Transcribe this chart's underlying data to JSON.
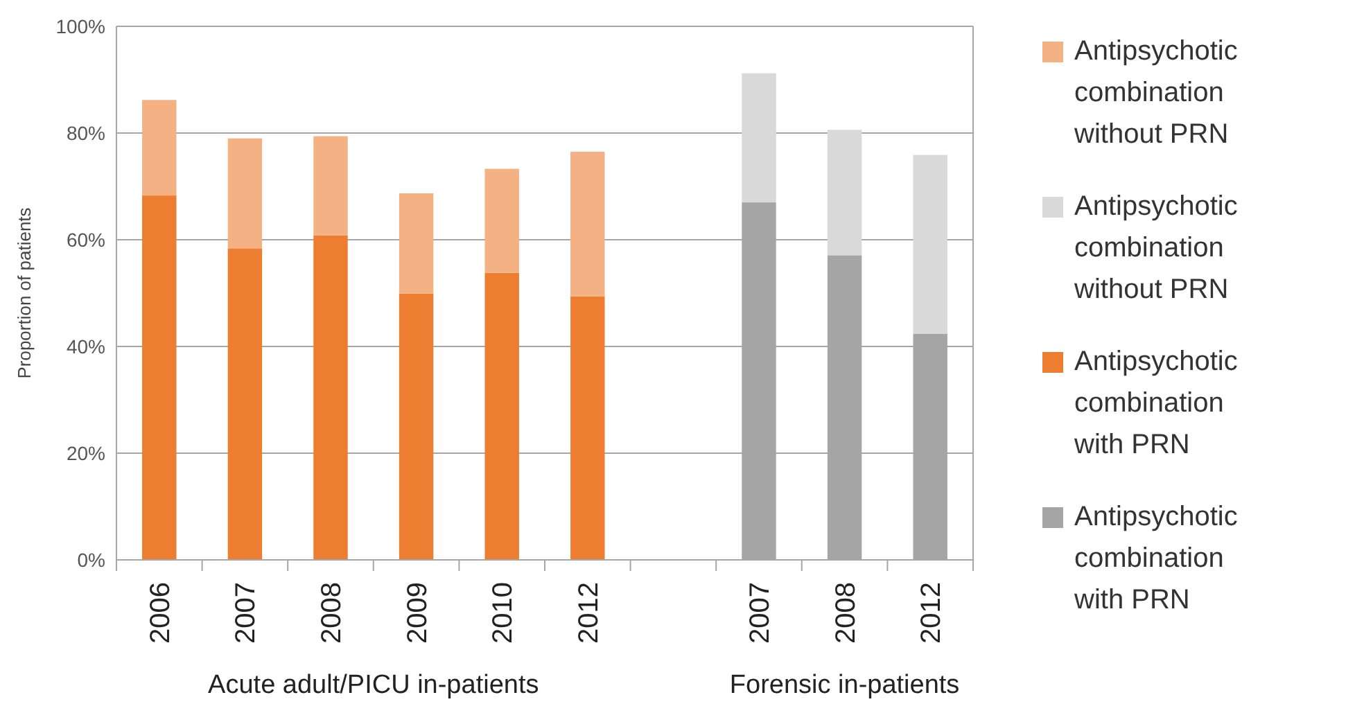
{
  "chart_data": {
    "type": "bar",
    "stacked": true,
    "ylabel": "Proportion of patients",
    "categories": [
      "2006",
      "2007",
      "2008",
      "2009",
      "2010",
      "2012",
      null,
      "2007",
      "2008",
      "2012"
    ],
    "series": [
      {
        "name": "Antipsychotic combination with PRN",
        "color": "#a5a5a5",
        "values": [
          null,
          null,
          null,
          null,
          null,
          null,
          null,
          67.0,
          57.1,
          42.4
        ]
      },
      {
        "name": "Antipsychotic combination with PRN",
        "color": "#ed7d31",
        "values": [
          68.3,
          58.4,
          60.8,
          49.9,
          53.8,
          49.4,
          null,
          null,
          null,
          null
        ]
      },
      {
        "name": "Antipsychotic combination without PRN",
        "color": "#d9d9d9",
        "values": [
          null,
          null,
          null,
          null,
          null,
          null,
          null,
          24.2,
          23.5,
          33.5
        ]
      },
      {
        "name": "Antipsychotic combination without PRN",
        "color": "#f4b183",
        "values": [
          17.9,
          20.6,
          18.6,
          18.8,
          19.5,
          27.1,
          null,
          null,
          null,
          null
        ]
      }
    ],
    "ylim": [
      0,
      100
    ],
    "yticks": [
      {
        "value": 0,
        "label": "0%"
      },
      {
        "value": 20,
        "label": "20%"
      },
      {
        "value": 40,
        "label": "40%"
      },
      {
        "value": 60,
        "label": "60%"
      },
      {
        "value": 80,
        "label": "80%"
      },
      {
        "value": 100,
        "label": "100%"
      }
    ],
    "grid": "y",
    "legend": "right",
    "annotations": [
      "Acute adult/PICU in-patients",
      "Forensic in-patients"
    ]
  }
}
